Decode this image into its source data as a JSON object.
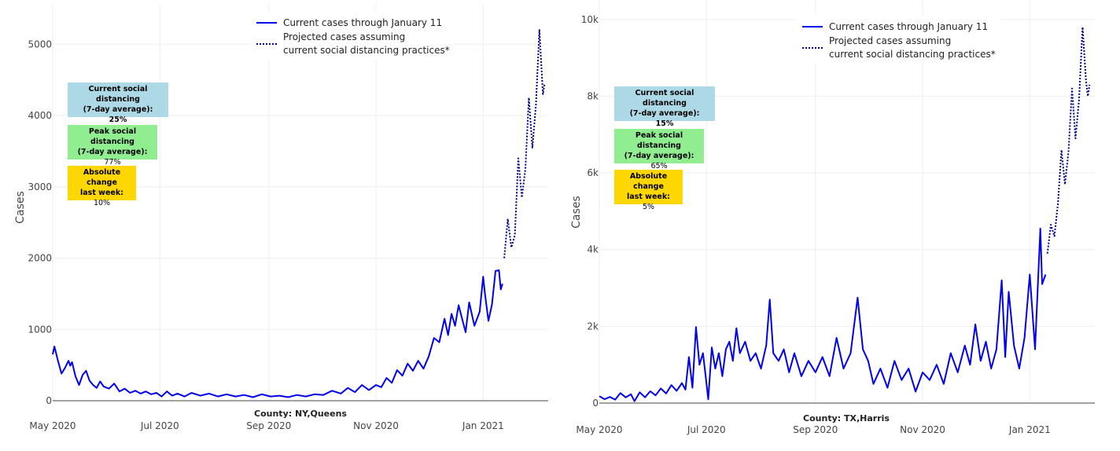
{
  "chart_data": [
    {
      "type": "line",
      "county_label": "County: NY,Queens",
      "ylabel": "Cases",
      "ylim": [
        0,
        5400
      ],
      "yticks": [
        0,
        1000,
        2000,
        3000,
        4000,
        5000
      ],
      "ytick_labels": [
        "0",
        "1000",
        "2000",
        "3000",
        "4000",
        "5000"
      ],
      "xlim": [
        "2020-05-01",
        "2021-02-07"
      ],
      "xticks": [
        "2020-05-01",
        "2020-07-01",
        "2020-09-01",
        "2020-11-01",
        "2021-01-01"
      ],
      "xtick_labels": [
        "May 2020",
        "Jul 2020",
        "Sep 2020",
        "Nov 2020",
        "Jan 2021"
      ],
      "legend": {
        "current": "Current cases through January 11",
        "projected_line1": "Projected cases assuming",
        "projected_line2": "current social distancing practices*"
      },
      "boxes": {
        "current_sd": {
          "title1": "Current social distancing",
          "title2": "(7-day average):",
          "value": "25%"
        },
        "peak_sd": {
          "title1": "Peak social distancing",
          "title2": "(7-day average):",
          "value": "77%"
        },
        "abs_change": {
          "title1": "Absolute change",
          "title2": "last week:",
          "value": "10%"
        }
      },
      "series": [
        {
          "name": "Current cases through January 11",
          "style": "solid",
          "color": "#0000ee",
          "points": [
            [
              "2020-05-01",
              650
            ],
            [
              "2020-05-02",
              760
            ],
            [
              "2020-05-04",
              560
            ],
            [
              "2020-05-06",
              380
            ],
            [
              "2020-05-08",
              460
            ],
            [
              "2020-05-10",
              560
            ],
            [
              "2020-05-11",
              490
            ],
            [
              "2020-05-12",
              540
            ],
            [
              "2020-05-14",
              340
            ],
            [
              "2020-05-16",
              220
            ],
            [
              "2020-05-18",
              360
            ],
            [
              "2020-05-20",
              420
            ],
            [
              "2020-05-22",
              280
            ],
            [
              "2020-05-24",
              220
            ],
            [
              "2020-05-26",
              180
            ],
            [
              "2020-05-28",
              270
            ],
            [
              "2020-05-30",
              200
            ],
            [
              "2020-06-02",
              170
            ],
            [
              "2020-06-05",
              240
            ],
            [
              "2020-06-08",
              130
            ],
            [
              "2020-06-11",
              170
            ],
            [
              "2020-06-14",
              110
            ],
            [
              "2020-06-17",
              140
            ],
            [
              "2020-06-20",
              100
            ],
            [
              "2020-06-23",
              130
            ],
            [
              "2020-06-26",
              90
            ],
            [
              "2020-06-29",
              110
            ],
            [
              "2020-07-02",
              60
            ],
            [
              "2020-07-05",
              130
            ],
            [
              "2020-07-08",
              70
            ],
            [
              "2020-07-11",
              100
            ],
            [
              "2020-07-15",
              60
            ],
            [
              "2020-07-19",
              110
            ],
            [
              "2020-07-24",
              70
            ],
            [
              "2020-07-29",
              100
            ],
            [
              "2020-08-03",
              60
            ],
            [
              "2020-08-08",
              90
            ],
            [
              "2020-08-13",
              60
            ],
            [
              "2020-08-18",
              80
            ],
            [
              "2020-08-23",
              50
            ],
            [
              "2020-08-28",
              90
            ],
            [
              "2020-09-02",
              60
            ],
            [
              "2020-09-07",
              70
            ],
            [
              "2020-09-12",
              50
            ],
            [
              "2020-09-17",
              80
            ],
            [
              "2020-09-22",
              60
            ],
            [
              "2020-09-27",
              90
            ],
            [
              "2020-10-02",
              80
            ],
            [
              "2020-10-07",
              140
            ],
            [
              "2020-10-12",
              100
            ],
            [
              "2020-10-16",
              180
            ],
            [
              "2020-10-20",
              120
            ],
            [
              "2020-10-24",
              220
            ],
            [
              "2020-10-28",
              150
            ],
            [
              "2020-11-01",
              220
            ],
            [
              "2020-11-04",
              190
            ],
            [
              "2020-11-07",
              320
            ],
            [
              "2020-11-10",
              250
            ],
            [
              "2020-11-13",
              430
            ],
            [
              "2020-11-16",
              350
            ],
            [
              "2020-11-19",
              520
            ],
            [
              "2020-11-22",
              420
            ],
            [
              "2020-11-25",
              560
            ],
            [
              "2020-11-28",
              450
            ],
            [
              "2020-12-01",
              620
            ],
            [
              "2020-12-04",
              880
            ],
            [
              "2020-12-07",
              820
            ],
            [
              "2020-12-10",
              1150
            ],
            [
              "2020-12-12",
              920
            ],
            [
              "2020-12-14",
              1220
            ],
            [
              "2020-12-16",
              1050
            ],
            [
              "2020-12-18",
              1340
            ],
            [
              "2020-12-20",
              1150
            ],
            [
              "2020-12-22",
              960
            ],
            [
              "2020-12-24",
              1380
            ],
            [
              "2020-12-27",
              1050
            ],
            [
              "2020-12-30",
              1250
            ],
            [
              "2021-01-01",
              1740
            ],
            [
              "2021-01-02",
              1500
            ],
            [
              "2021-01-04",
              1120
            ],
            [
              "2021-01-06",
              1350
            ],
            [
              "2021-01-08",
              1820
            ],
            [
              "2021-01-10",
              1830
            ],
            [
              "2021-01-11",
              1560
            ],
            [
              "2021-01-12",
              1640
            ]
          ]
        },
        {
          "name": "Projected cases assuming current social distancing practices*",
          "style": "dotted",
          "color": "#000080",
          "points": [
            [
              "2021-01-13",
              2000
            ],
            [
              "2021-01-15",
              2550
            ],
            [
              "2021-01-17",
              2150
            ],
            [
              "2021-01-19",
              2320
            ],
            [
              "2021-01-21",
              3400
            ],
            [
              "2021-01-23",
              2850
            ],
            [
              "2021-01-25",
              3250
            ],
            [
              "2021-01-27",
              4250
            ],
            [
              "2021-01-29",
              3550
            ],
            [
              "2021-01-31",
              4150
            ],
            [
              "2021-02-02",
              5200
            ],
            [
              "2021-02-04",
              4300
            ],
            [
              "2021-02-05",
              4450
            ]
          ]
        }
      ]
    },
    {
      "type": "line",
      "county_label": "County: TX,Harris",
      "ylabel": "Cases",
      "ylim": [
        0,
        10200
      ],
      "yticks": [
        0,
        2000,
        4000,
        6000,
        8000,
        10000
      ],
      "ytick_labels": [
        "0",
        "2k",
        "4k",
        "6k",
        "8k",
        "10k"
      ],
      "xlim": [
        "2020-05-01",
        "2021-02-07"
      ],
      "xticks": [
        "2020-05-01",
        "2020-07-01",
        "2020-09-01",
        "2020-11-01",
        "2021-01-01"
      ],
      "xtick_labels": [
        "May 2020",
        "Jul 2020",
        "Sep 2020",
        "Nov 2020",
        "Jan 2021"
      ],
      "legend": {
        "current": "Current cases through January 11",
        "projected_line1": "Projected cases assuming",
        "projected_line2": "current social distancing practices*"
      },
      "boxes": {
        "current_sd": {
          "title1": "Current social distancing",
          "title2": "(7-day average):",
          "value": "15%"
        },
        "peak_sd": {
          "title1": "Peak social distancing",
          "title2": "(7-day average):",
          "value": "65%"
        },
        "abs_change": {
          "title1": "Absolute change",
          "title2": "last week:",
          "value": "5%"
        }
      },
      "series": [
        {
          "name": "Current cases through January 11",
          "style": "solid",
          "color": "#0000ee",
          "points": [
            [
              "2020-05-01",
              180
            ],
            [
              "2020-05-04",
              100
            ],
            [
              "2020-05-07",
              160
            ],
            [
              "2020-05-10",
              90
            ],
            [
              "2020-05-13",
              260
            ],
            [
              "2020-05-16",
              150
            ],
            [
              "2020-05-19",
              230
            ],
            [
              "2020-05-21",
              50
            ],
            [
              "2020-05-24",
              280
            ],
            [
              "2020-05-27",
              150
            ],
            [
              "2020-05-30",
              310
            ],
            [
              "2020-06-02",
              200
            ],
            [
              "2020-06-05",
              380
            ],
            [
              "2020-06-08",
              250
            ],
            [
              "2020-06-11",
              470
            ],
            [
              "2020-06-14",
              320
            ],
            [
              "2020-06-17",
              520
            ],
            [
              "2020-06-19",
              350
            ],
            [
              "2020-06-21",
              1200
            ],
            [
              "2020-06-23",
              400
            ],
            [
              "2020-06-25",
              1980
            ],
            [
              "2020-06-27",
              1000
            ],
            [
              "2020-06-29",
              1300
            ],
            [
              "2020-07-01",
              500
            ],
            [
              "2020-07-02",
              100
            ],
            [
              "2020-07-04",
              1450
            ],
            [
              "2020-07-06",
              900
            ],
            [
              "2020-07-08",
              1300
            ],
            [
              "2020-07-10",
              700
            ],
            [
              "2020-07-12",
              1400
            ],
            [
              "2020-07-14",
              1600
            ],
            [
              "2020-07-16",
              1100
            ],
            [
              "2020-07-18",
              1950
            ],
            [
              "2020-07-20",
              1300
            ],
            [
              "2020-07-23",
              1600
            ],
            [
              "2020-07-26",
              1100
            ],
            [
              "2020-07-29",
              1300
            ],
            [
              "2020-08-01",
              900
            ],
            [
              "2020-08-04",
              1500
            ],
            [
              "2020-08-06",
              2700
            ],
            [
              "2020-08-08",
              1300
            ],
            [
              "2020-08-11",
              1100
            ],
            [
              "2020-08-14",
              1400
            ],
            [
              "2020-08-17",
              800
            ],
            [
              "2020-08-20",
              1300
            ],
            [
              "2020-08-24",
              700
            ],
            [
              "2020-08-28",
              1100
            ],
            [
              "2020-09-01",
              800
            ],
            [
              "2020-09-05",
              1200
            ],
            [
              "2020-09-09",
              700
            ],
            [
              "2020-09-13",
              1700
            ],
            [
              "2020-09-17",
              900
            ],
            [
              "2020-09-21",
              1300
            ],
            [
              "2020-09-25",
              2750
            ],
            [
              "2020-09-28",
              1400
            ],
            [
              "2020-10-01",
              1100
            ],
            [
              "2020-10-04",
              500
            ],
            [
              "2020-10-08",
              900
            ],
            [
              "2020-10-12",
              400
            ],
            [
              "2020-10-16",
              1100
            ],
            [
              "2020-10-20",
              600
            ],
            [
              "2020-10-24",
              900
            ],
            [
              "2020-10-28",
              300
            ],
            [
              "2020-11-01",
              800
            ],
            [
              "2020-11-05",
              600
            ],
            [
              "2020-11-09",
              1000
            ],
            [
              "2020-11-13",
              500
            ],
            [
              "2020-11-17",
              1300
            ],
            [
              "2020-11-21",
              800
            ],
            [
              "2020-11-25",
              1500
            ],
            [
              "2020-11-28",
              1000
            ],
            [
              "2020-12-01",
              2050
            ],
            [
              "2020-12-04",
              1100
            ],
            [
              "2020-12-07",
              1600
            ],
            [
              "2020-12-10",
              900
            ],
            [
              "2020-12-13",
              1400
            ],
            [
              "2020-12-16",
              3200
            ],
            [
              "2020-12-18",
              1200
            ],
            [
              "2020-12-20",
              2900
            ],
            [
              "2020-12-23",
              1500
            ],
            [
              "2020-12-26",
              900
            ],
            [
              "2020-12-29",
              1700
            ],
            [
              "2021-01-01",
              3350
            ],
            [
              "2021-01-04",
              1400
            ],
            [
              "2021-01-07",
              4550
            ],
            [
              "2021-01-08",
              3100
            ],
            [
              "2021-01-10",
              3350
            ]
          ]
        },
        {
          "name": "Projected cases assuming current social distancing practices*",
          "style": "dotted",
          "color": "#000080",
          "points": [
            [
              "2021-01-11",
              3900
            ],
            [
              "2021-01-13",
              4650
            ],
            [
              "2021-01-15",
              4350
            ],
            [
              "2021-01-17",
              5200
            ],
            [
              "2021-01-19",
              6600
            ],
            [
              "2021-01-21",
              5700
            ],
            [
              "2021-01-23",
              6550
            ],
            [
              "2021-01-25",
              8200
            ],
            [
              "2021-01-27",
              6900
            ],
            [
              "2021-01-29",
              7900
            ],
            [
              "2021-01-31",
              9800
            ],
            [
              "2021-02-02",
              8400
            ],
            [
              "2021-02-03",
              8000
            ],
            [
              "2021-02-04",
              8300
            ]
          ]
        }
      ]
    }
  ]
}
